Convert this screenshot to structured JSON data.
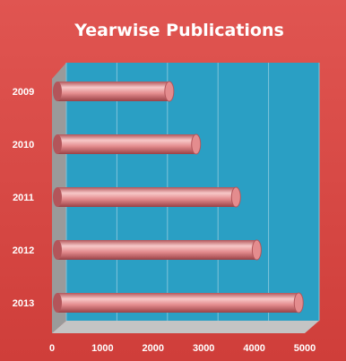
{
  "colors": {
    "background": "#d8443f",
    "plot_back": "#2a9fc4",
    "plot_side": "#9a9a9a",
    "plot_floor": "#c4c4c4",
    "bar_face": "#e48c8e",
    "bar_light": "#f7c8c8",
    "bar_dark": "#b3555a",
    "title_text": "#ffffff",
    "tick_text": "#ffffff"
  },
  "chart_data": {
    "type": "bar",
    "orientation": "horizontal",
    "style": "3d-cylinder",
    "title": "Yearwise Publications",
    "categories": [
      "2009",
      "2010",
      "2011",
      "2012",
      "2013"
    ],
    "values": [
      2320,
      2850,
      3640,
      4050,
      4880
    ],
    "xlim": [
      0,
      5000
    ],
    "xticks": [
      "0",
      "1000",
      "2000",
      "3000",
      "4000",
      "5000"
    ],
    "grid": true,
    "legend": "none"
  }
}
